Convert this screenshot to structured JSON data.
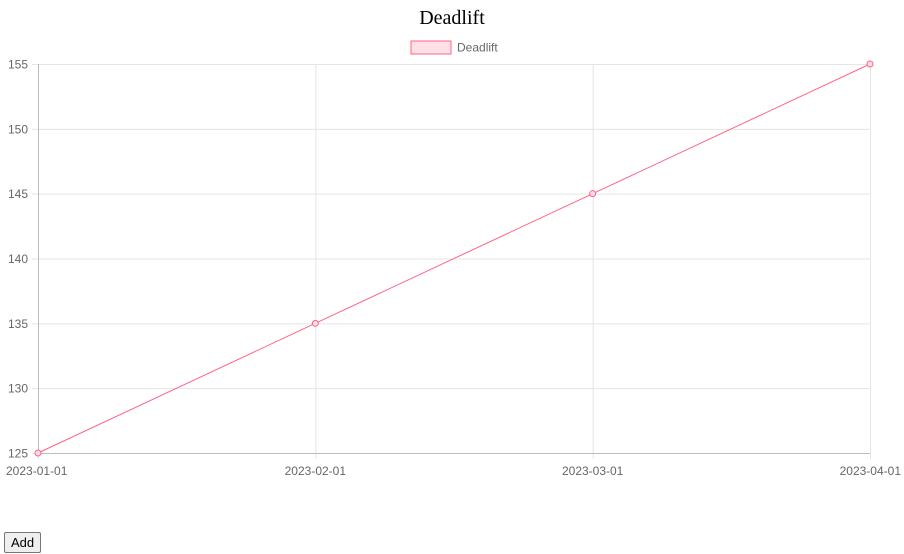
{
  "chart_data": {
    "type": "line",
    "title": "Deadlift",
    "x": [
      "2023-01-01",
      "2023-02-01",
      "2023-03-01",
      "2023-04-01"
    ],
    "series": [
      {
        "name": "Deadlift",
        "values": [
          125,
          135,
          145,
          155
        ],
        "color": "#ff6384",
        "fill": "#ffe0e6"
      }
    ],
    "ylim": [
      125,
      155
    ],
    "yticks": [
      155,
      150,
      145,
      140,
      135,
      130,
      125
    ],
    "grid": true,
    "legend": "top-center"
  },
  "controls": {
    "add_label": "Add"
  }
}
